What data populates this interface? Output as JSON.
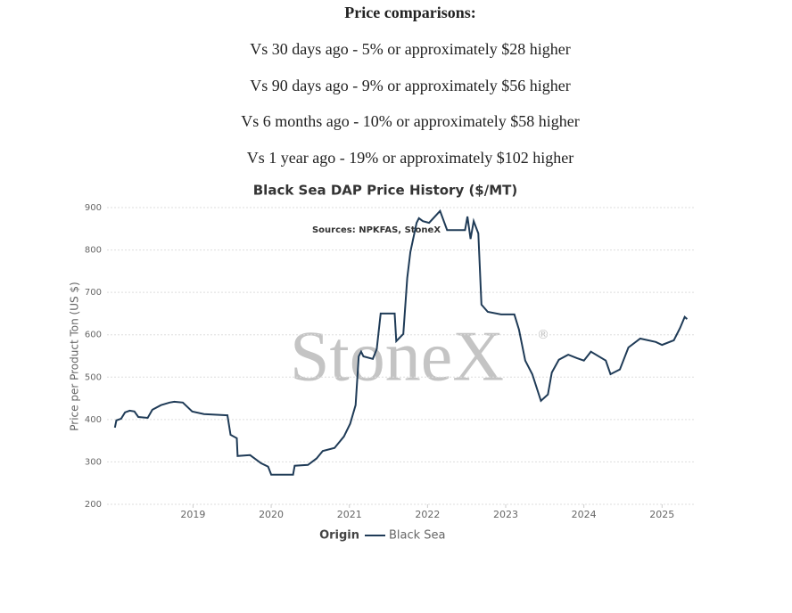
{
  "header": {
    "title": "Price comparisons:",
    "lines": [
      "Vs 30 days ago - 5% or approximately $28 higher",
      "Vs 90 days ago - 9% or approximately $56 higher",
      "Vs 6 months ago - 10% or approximately $58 higher",
      "Vs 1 year ago - 19% or approximately $102 higher"
    ]
  },
  "chart_data": {
    "type": "line",
    "title": "Black Sea DAP Price History ($/MT)",
    "subtitle": "Sources: NPKFAS, StoneX",
    "watermark": "StoneX",
    "watermark_mark": "®",
    "y_label": "Price per Product Ton (US $)",
    "legend_title": "Origin",
    "grid": true,
    "x": [
      2018.0,
      2018.02,
      2018.08,
      2018.13,
      2018.19,
      2018.25,
      2018.3,
      2018.42,
      2018.48,
      2018.59,
      2018.7,
      2018.76,
      2018.87,
      2018.99,
      2019.14,
      2019.44,
      2019.48,
      2019.56,
      2019.57,
      2019.73,
      2019.87,
      2019.96,
      2020.0,
      2020.28,
      2020.3,
      2020.47,
      2020.58,
      2020.66,
      2020.81,
      2020.93,
      2021.01,
      2021.08,
      2021.12,
      2021.15,
      2021.18,
      2021.3,
      2021.35,
      2021.4,
      2021.58,
      2021.6,
      2021.69,
      2021.74,
      2021.78,
      2021.86,
      2021.89,
      2021.94,
      2022.02,
      2022.16,
      2022.25,
      2022.48,
      2022.51,
      2022.55,
      2022.59,
      2022.65,
      2022.69,
      2022.77,
      2022.94,
      2023.11,
      2023.17,
      2023.25,
      2023.34,
      2023.45,
      2023.54,
      2023.59,
      2023.68,
      2023.8,
      2023.91,
      2024.0,
      2024.09,
      2024.28,
      2024.34,
      2024.46,
      2024.57,
      2024.72,
      2024.92,
      2025.0,
      2025.15,
      2025.23,
      2025.29,
      2025.32
    ],
    "series": [
      {
        "name": "Black Sea",
        "color": "#1f3b57",
        "values": [
          381,
          398,
          402,
          417,
          421,
          419,
          406,
          404,
          423,
          434,
          440,
          442,
          440,
          419,
          413,
          410,
          364,
          356,
          314,
          316,
          297,
          289,
          270,
          270,
          291,
          293,
          308,
          326,
          333,
          360,
          390,
          434,
          549,
          560,
          549,
          543,
          566,
          650,
          650,
          585,
          602,
          734,
          795,
          864,
          875,
          868,
          864,
          892,
          847,
          847,
          879,
          826,
          868,
          839,
          671,
          654,
          648,
          648,
          612,
          539,
          507,
          444,
          459,
          511,
          541,
          553,
          545,
          539,
          560,
          539,
          507,
          518,
          570,
          591,
          583,
          576,
          587,
          616,
          642,
          637
        ]
      }
    ],
    "xlim": [
      2017.9,
      2025.43
    ],
    "xticks": [
      2019,
      2020,
      2021,
      2022,
      2023,
      2024,
      2025
    ],
    "ylim": [
      200,
      900
    ],
    "yticks": [
      200,
      300,
      400,
      500,
      600,
      700,
      800,
      900
    ]
  }
}
